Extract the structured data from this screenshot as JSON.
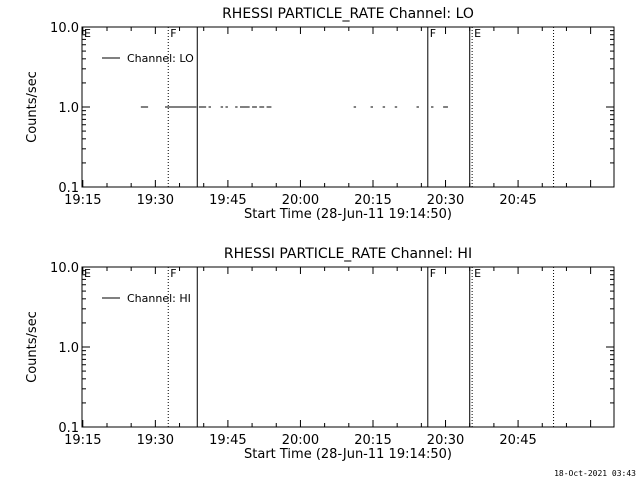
{
  "footer_timestamp": "18-Oct-2021 03:43",
  "chart_data": [
    {
      "type": "line",
      "title": "RHESSI PARTICLE_RATE Channel: LO",
      "xlabel": "Start Time (28-Jun-11 19:14:50)",
      "ylabel": "Counts/sec",
      "yscale": "log",
      "ylim": [
        0.1,
        10.0
      ],
      "xlim": [
        "19:14:50",
        "21:04:50"
      ],
      "x_ticks": [
        "19:15",
        "19:30",
        "19:45",
        "20:00",
        "20:15",
        "20:30",
        "20:45"
      ],
      "y_ticks": [
        "10.0",
        "1.0",
        "0.1"
      ],
      "legend": {
        "position": "top-left",
        "entries": [
          "Channel: LO"
        ]
      },
      "series": [
        {
          "name": "Channel: LO",
          "segments": [
            [
              "19:27:00",
              "19:28:30"
            ],
            [
              "19:32:00",
              "19:38:30"
            ],
            [
              "19:39:00",
              "19:40:30"
            ],
            [
              "19:41:00",
              "19:41:30"
            ],
            [
              "19:43:30",
              "19:44:00"
            ],
            [
              "19:44:30",
              "19:45:00"
            ],
            [
              "19:46:30",
              "19:47:00"
            ],
            [
              "19:47:30",
              "19:49:30"
            ],
            [
              "19:50:00",
              "19:51:00"
            ],
            [
              "19:51:30",
              "19:52:30"
            ],
            [
              "19:53:00",
              "19:54:00"
            ],
            [
              "20:11:00",
              "20:11:30"
            ],
            [
              "20:14:30",
              "20:15:00"
            ],
            [
              "20:17:00",
              "20:17:30"
            ],
            [
              "20:19:30",
              "20:20:00"
            ],
            [
              "20:24:00",
              "20:24:30"
            ],
            [
              "20:27:00",
              "20:27:30"
            ],
            [
              "20:29:30",
              "20:30:30"
            ]
          ],
          "value": 1.0
        }
      ],
      "markers": [
        {
          "label": "E",
          "time": "19:14:50",
          "style": "dotted"
        },
        {
          "label": "F",
          "time": "19:32:40",
          "style": "dotted"
        },
        {
          "label": "",
          "time": "19:38:40",
          "style": "solid"
        },
        {
          "label": "F",
          "time": "20:26:20",
          "style": "solid"
        },
        {
          "label": "",
          "time": "20:35:00",
          "style": "solid"
        },
        {
          "label": "E",
          "time": "20:35:30",
          "style": "dotted"
        },
        {
          "label": "",
          "time": "20:52:20",
          "style": "dotted"
        }
      ]
    },
    {
      "type": "line",
      "title": "RHESSI PARTICLE_RATE Channel: HI",
      "xlabel": "Start Time (28-Jun-11 19:14:50)",
      "ylabel": "Counts/sec",
      "yscale": "log",
      "ylim": [
        0.1,
        10.0
      ],
      "xlim": [
        "19:14:50",
        "21:04:50"
      ],
      "x_ticks": [
        "19:15",
        "19:30",
        "19:45",
        "20:00",
        "20:15",
        "20:30",
        "20:45"
      ],
      "y_ticks": [
        "10.0",
        "1.0",
        "0.1"
      ],
      "legend": {
        "position": "top-left",
        "entries": [
          "Channel: HI"
        ]
      },
      "series": [
        {
          "name": "Channel: HI",
          "segments": [],
          "value": 1.0
        }
      ],
      "markers": [
        {
          "label": "E",
          "time": "19:14:50",
          "style": "dotted"
        },
        {
          "label": "F",
          "time": "19:32:40",
          "style": "dotted"
        },
        {
          "label": "",
          "time": "19:38:40",
          "style": "solid"
        },
        {
          "label": "F",
          "time": "20:26:20",
          "style": "solid"
        },
        {
          "label": "",
          "time": "20:35:00",
          "style": "solid"
        },
        {
          "label": "E",
          "time": "20:35:30",
          "style": "dotted"
        },
        {
          "label": "",
          "time": "20:52:20",
          "style": "dotted"
        }
      ]
    }
  ]
}
